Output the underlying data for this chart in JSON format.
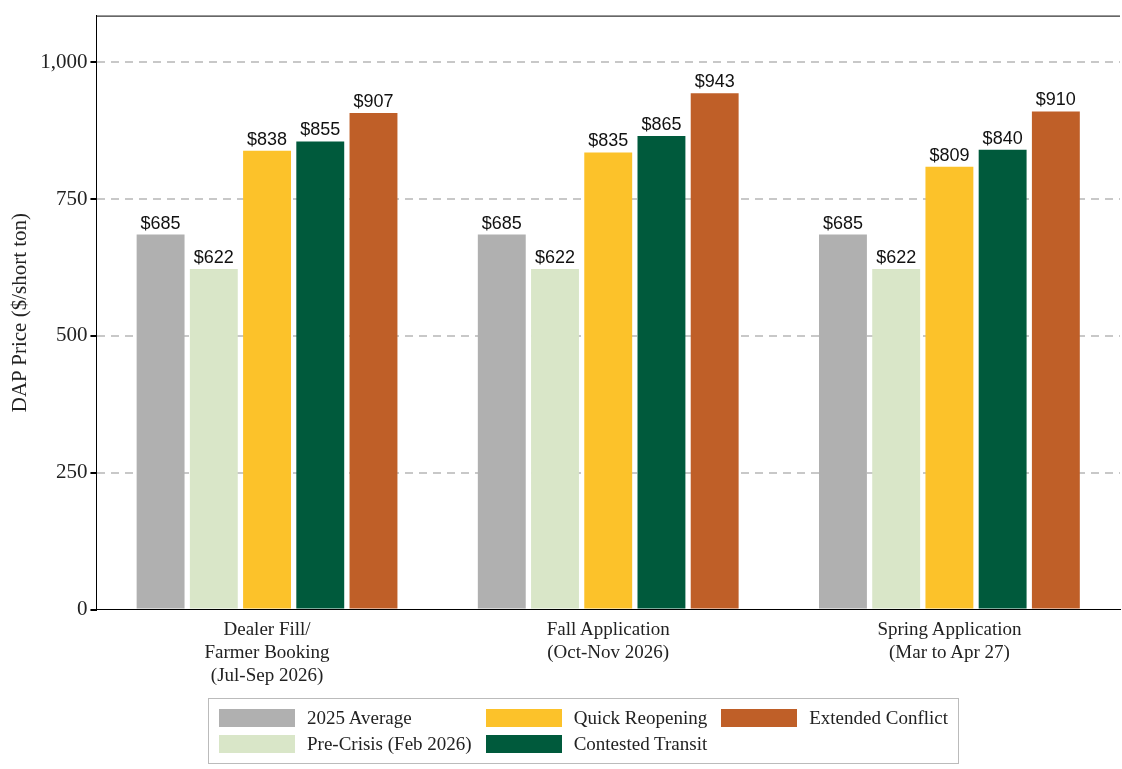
{
  "chart_data": {
    "type": "bar",
    "ylabel": "DAP Price ($/short ton)",
    "categories": [
      "Dealer Fill/\nFarmer Booking\n(Jul-Sep 2026)",
      "Fall Application\n(Oct-Nov 2026)",
      "Spring Application\n(Mar to Apr 27)"
    ],
    "series": [
      {
        "name": "2025 Average",
        "color": "#b0b0b0",
        "values": [
          685,
          685,
          685
        ],
        "value_labels": [
          "$685",
          "$685",
          "$685"
        ]
      },
      {
        "name": "Pre-Crisis (Feb 2026)",
        "color": "#d9e6c8",
        "values": [
          622,
          622,
          622
        ],
        "value_labels": [
          "$622",
          "$622",
          "$622"
        ]
      },
      {
        "name": "Quick Reopening",
        "color": "#fcc22a",
        "values": [
          838,
          835,
          809
        ],
        "value_labels": [
          "$838",
          "$835",
          "$809"
        ]
      },
      {
        "name": "Contested Transit",
        "color": "#005a3c",
        "values": [
          855,
          865,
          840
        ],
        "value_labels": [
          "$855",
          "$865",
          "$840"
        ]
      },
      {
        "name": "Extended Conflict",
        "color": "#bf5f28",
        "values": [
          907,
          943,
          910
        ],
        "value_labels": [
          "$907",
          "$943",
          "$910"
        ]
      }
    ],
    "ylim": [
      0,
      1085
    ],
    "yticks": [
      {
        "value": 0,
        "label": "0"
      },
      {
        "value": 250,
        "label": "250"
      },
      {
        "value": 500,
        "label": "500"
      },
      {
        "value": 750,
        "label": "750"
      },
      {
        "value": 1000,
        "label": "1,000"
      }
    ],
    "grid": "y",
    "legend": "bottom"
  }
}
